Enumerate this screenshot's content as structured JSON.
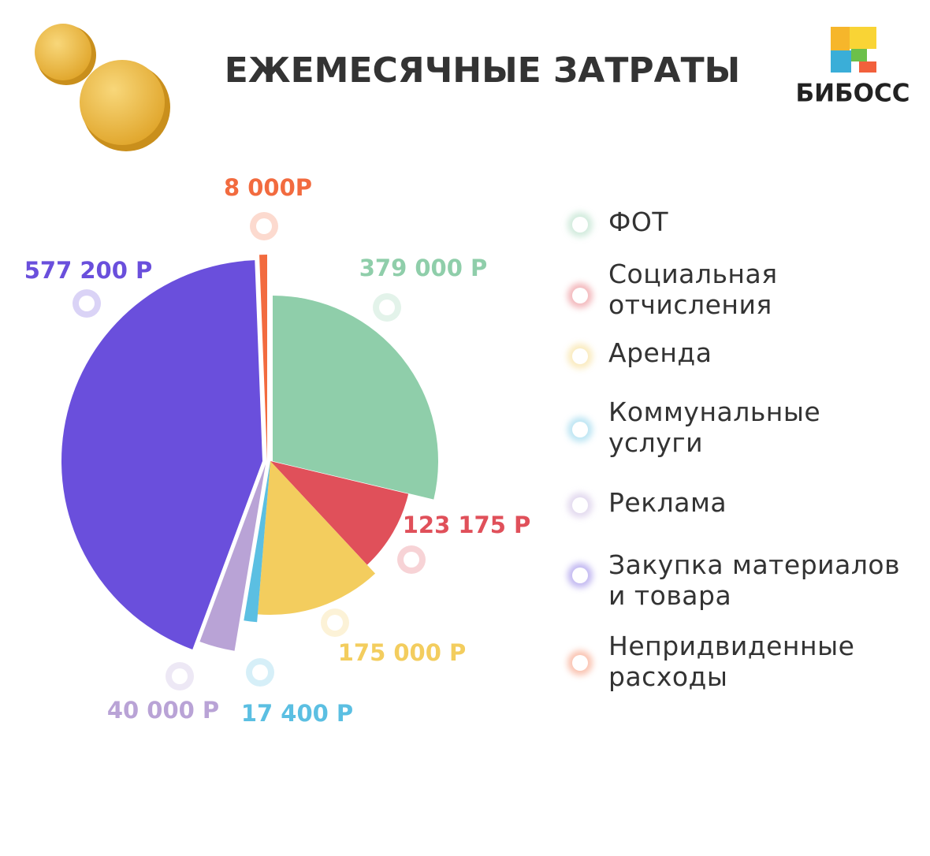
{
  "brand": "БИБОСС",
  "chart_data": {
    "type": "pie",
    "title": "ЕЖЕМЕСЯЧНЫЕ ЗАТРАТЫ",
    "categories": [
      "ФОТ",
      "Социальная отчисления",
      "Аренда",
      "Коммунальные услуги",
      "Реклама",
      "Закупка материалов и товара",
      "Непридвиденные расходы"
    ],
    "values": [
      379000,
      123175,
      175000,
      17400,
      40000,
      577200,
      8000
    ],
    "value_labels": [
      "379 000 Р",
      "123 175 Р",
      "175 000 Р",
      "17 400 Р",
      "40 000 Р",
      "577 200 Р",
      "8 000Р"
    ],
    "colors": [
      "#8fceaa",
      "#e0505a",
      "#f3cd5e",
      "#5bbfe2",
      "#b9a3d6",
      "#6a4fdc",
      "#f26b3f"
    ]
  }
}
